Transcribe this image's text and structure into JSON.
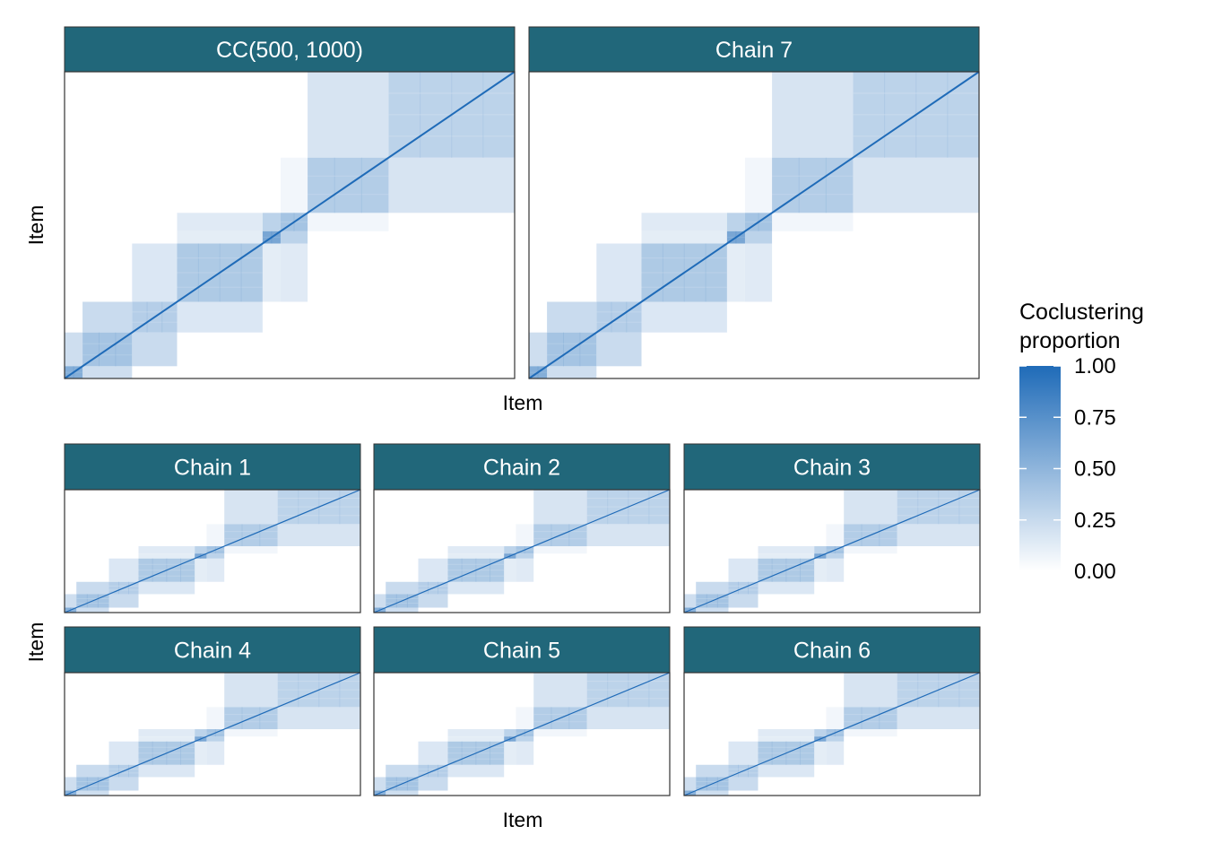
{
  "chart_data": {
    "type": "heatmap",
    "description_x": "Item",
    "description_y": "Item",
    "value_range": [
      0,
      1
    ],
    "colors": {
      "low": "#ffffff",
      "high": "#1f6bb8",
      "strip": "#21677a",
      "panel_border": "#333333"
    },
    "clusters": [
      {
        "size": 0.04,
        "strength": 0.55
      },
      {
        "size": 0.11,
        "strength": 0.4
      },
      {
        "size": 0.1,
        "strength": 0.33
      },
      {
        "size": 0.19,
        "strength": 0.36
      },
      {
        "size": 0.04,
        "strength": 0.6
      },
      {
        "size": 0.06,
        "strength": 0.4
      },
      {
        "size": 0.18,
        "strength": 0.34
      },
      {
        "size": 0.28,
        "strength": 0.3
      }
    ],
    "top_panels": [
      {
        "title": "CC(500, 1000)"
      },
      {
        "title": "Chain 7"
      }
    ],
    "bottom_panels": [
      {
        "title": "Chain 1"
      },
      {
        "title": "Chain 2"
      },
      {
        "title": "Chain 3"
      },
      {
        "title": "Chain 4"
      },
      {
        "title": "Chain 5"
      },
      {
        "title": "Chain 6"
      }
    ],
    "top_xlabel": "Item",
    "top_ylabel": "Item",
    "bottom_xlabel": "Item",
    "bottom_ylabel": "Item",
    "legend": {
      "title_line1": "Coclustering",
      "title_line2": "proportion",
      "ticks": [
        "1.00",
        "0.75",
        "0.50",
        "0.25",
        "0.00"
      ],
      "tick_values": [
        1.0,
        0.75,
        0.5,
        0.25,
        0.0
      ]
    }
  }
}
